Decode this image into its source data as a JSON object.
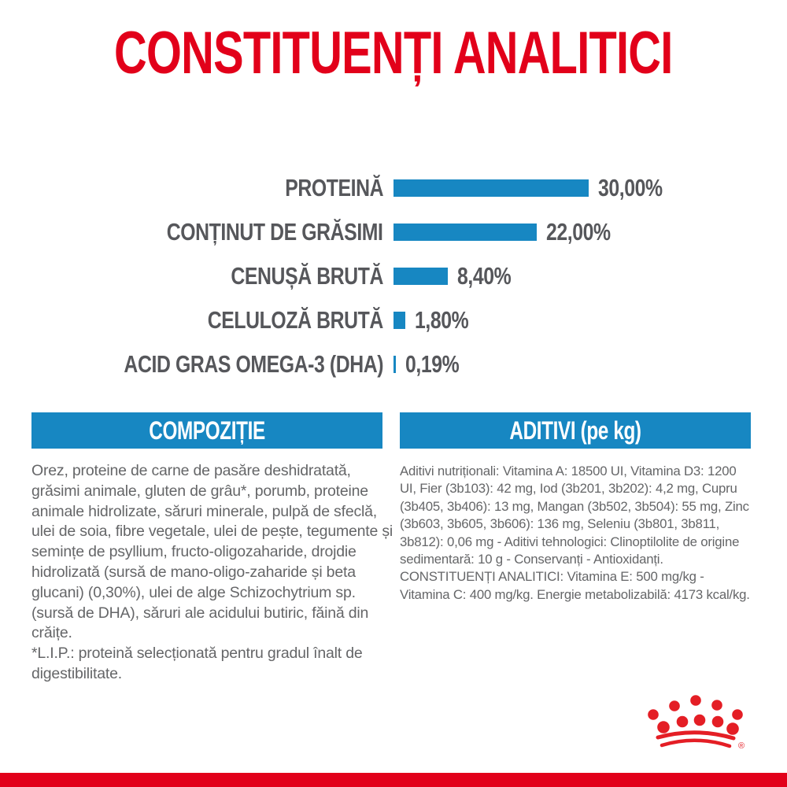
{
  "theme": {
    "brand_red": "#e2001a",
    "logo_red": "#e41e25",
    "accent_blue": "#1787c2",
    "label_gray": "#56575b",
    "body_gray": "#656668"
  },
  "page": {
    "title": "CONSTITUENȚI ANALITICI"
  },
  "chart_data": {
    "type": "bar",
    "orientation": "horizontal",
    "title": "CONSTITUENȚI ANALITICI",
    "categories": [
      "PROTEINĂ",
      "CONȚINUT DE GRĂSIMI",
      "CENUȘĂ BRUTĂ",
      "CELULOZĂ BRUTĂ",
      "ACID GRAS OMEGA-3 (DHA)"
    ],
    "values": [
      30.0,
      22.0,
      8.4,
      1.8,
      0.19
    ],
    "value_labels": [
      "30,00%",
      "22,00%",
      "8,40%",
      "1,80%",
      "0,19%"
    ],
    "unit": "%",
    "xlim": [
      0,
      30
    ],
    "bar_color": "#1787c2",
    "grid": false,
    "legend": false
  },
  "sections": {
    "composition": {
      "header": "COMPOZIȚIE",
      "body": "Orez, proteine de carne de pasăre deshidratată, grăsimi animale, gluten de grâu*, porumb, proteine animale hidrolizate, săruri minerale, pulpă de sfeclă, ulei de soia, fibre vegetale, ulei de pește, tegumente și semințe de psyllium, fructo-oligozaharide, drojdie hidrolizată (sursă de mano-oligo-zaharide și beta glucani) (0,30%), ulei de alge Schizochytrium sp. (sursă de DHA), săruri ale acidului butiric, făină din crăițe.",
      "footnote": "*L.I.P.: proteină selecționată pentru gradul înalt de digestibilitate."
    },
    "additives": {
      "header": "ADITIVI (pe kg)",
      "body_1": "Aditivi nutriționali: Vitamina A: 18500 UI, Vitamina D3: 1200 UI, Fier (3b103): 42 mg, Iod (3b201, 3b202): 4,2 mg, Cupru (3b405, 3b406): 13 mg, Mangan (3b502, 3b504): 55 mg, Zinc (3b603, 3b605, 3b606): 136 mg, Seleniu (3b801, 3b811, 3b812): 0,06 mg - Aditivi tehnologici: Clinoptilolite de origine sedimentară: 10 g - Conservanți - Antioxidanți.",
      "body_2": "CONSTITUENȚI ANALITICI: Vitamina E: 500 mg/kg - Vitamina C: 400 mg/kg. Energie metabolizabilă: 4173 kcal/kg."
    }
  },
  "footer": {
    "logo": "royal-canin-crown",
    "registered_mark": "®"
  }
}
